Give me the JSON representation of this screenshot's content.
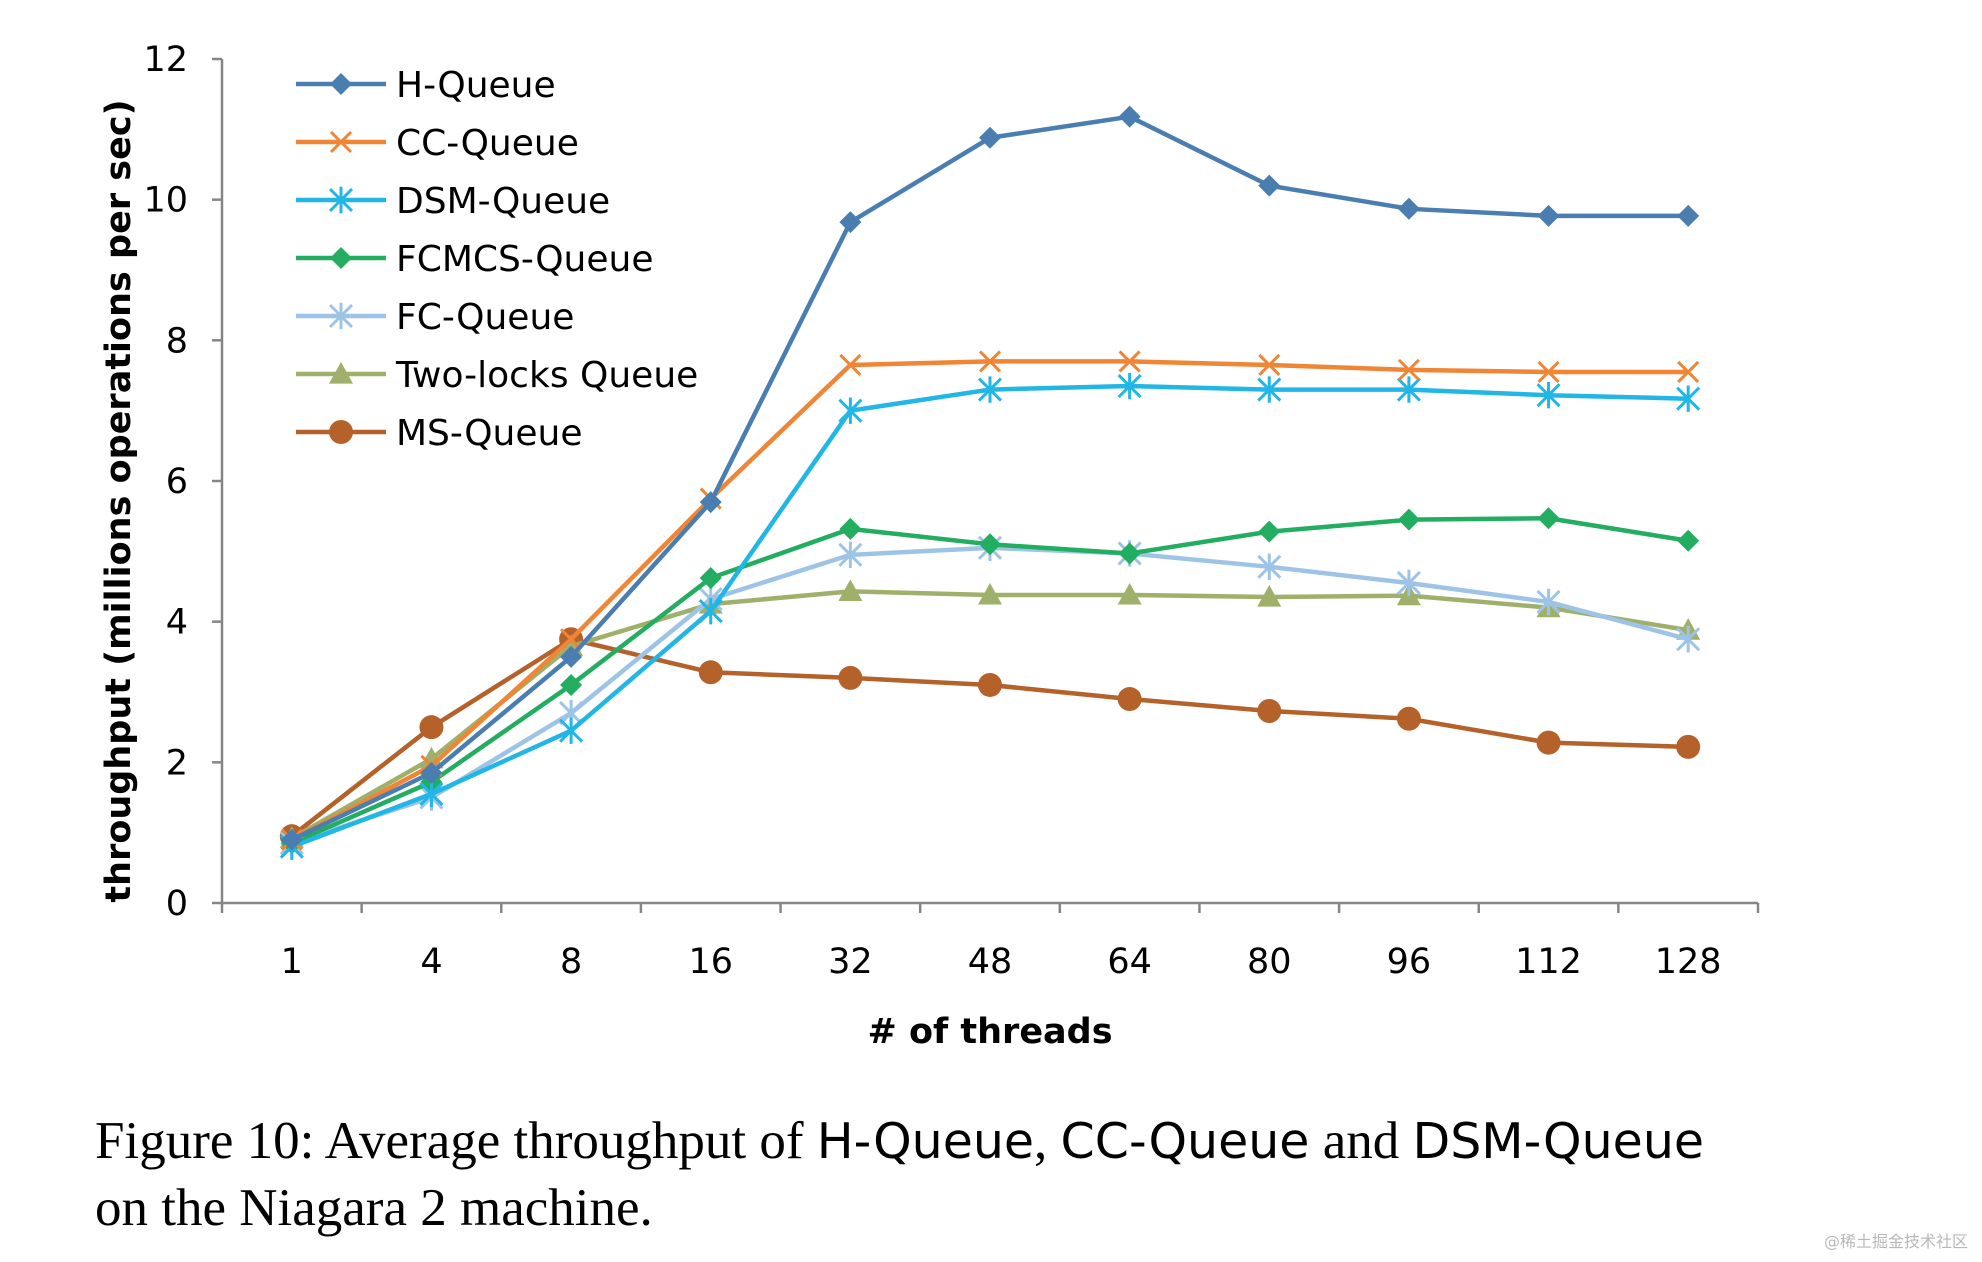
{
  "chart_data": {
    "type": "line",
    "title": "",
    "xlabel": "# of threads",
    "ylabel": "throughput (millions operations per sec)",
    "categories": [
      "1",
      "4",
      "8",
      "16",
      "32",
      "48",
      "64",
      "80",
      "96",
      "112",
      "128"
    ],
    "ylim": [
      0,
      12
    ],
    "yticks": [
      0,
      2,
      4,
      6,
      8,
      10,
      12
    ],
    "legend_position": "top-left",
    "series": [
      {
        "name": "H-Queue",
        "color": "#4a7eb0",
        "marker": "diamond",
        "values": [
          0.9,
          1.85,
          3.5,
          5.7,
          9.68,
          10.88,
          11.18,
          10.2,
          9.87,
          9.77,
          9.77
        ]
      },
      {
        "name": "CC-Queue",
        "color": "#ef8535",
        "marker": "x",
        "values": [
          0.9,
          1.95,
          3.75,
          5.75,
          7.65,
          7.7,
          7.7,
          7.65,
          7.58,
          7.55,
          7.55
        ]
      },
      {
        "name": "DSM-Queue",
        "color": "#21b6e6",
        "marker": "asterisk",
        "values": [
          0.8,
          1.55,
          2.45,
          4.15,
          7.0,
          7.3,
          7.35,
          7.3,
          7.3,
          7.22,
          7.17
        ]
      },
      {
        "name": "FCMCS-Queue",
        "color": "#23ad61",
        "marker": "diamond",
        "values": [
          0.85,
          1.72,
          3.1,
          4.62,
          5.32,
          5.1,
          4.97,
          5.28,
          5.45,
          5.47,
          5.15
        ]
      },
      {
        "name": "FC-Queue",
        "color": "#9dc4e6",
        "marker": "asterisk",
        "values": [
          0.85,
          1.5,
          2.7,
          4.32,
          4.95,
          5.05,
          4.97,
          4.78,
          4.55,
          4.28,
          3.75
        ]
      },
      {
        "name": "Two-locks Queue",
        "color": "#9eb06a",
        "marker": "triangle",
        "values": [
          0.92,
          2.05,
          3.65,
          4.25,
          4.43,
          4.38,
          4.38,
          4.35,
          4.37,
          4.2,
          3.88
        ]
      },
      {
        "name": "MS-Queue",
        "color": "#b4612a",
        "marker": "circle",
        "values": [
          0.95,
          2.5,
          3.75,
          3.28,
          3.2,
          3.1,
          2.9,
          2.73,
          2.62,
          2.28,
          2.22
        ]
      }
    ]
  },
  "caption": {
    "prefix": "Figure 10: Average throughput of ",
    "q1": "H-Queue",
    "sep1": ", ",
    "q2": "CC-Queue",
    "mid": " and ",
    "q3": "DSM-Queue",
    "line2": "on the Niagara 2 machine."
  },
  "watermark": "@稀土掘金技术社区"
}
